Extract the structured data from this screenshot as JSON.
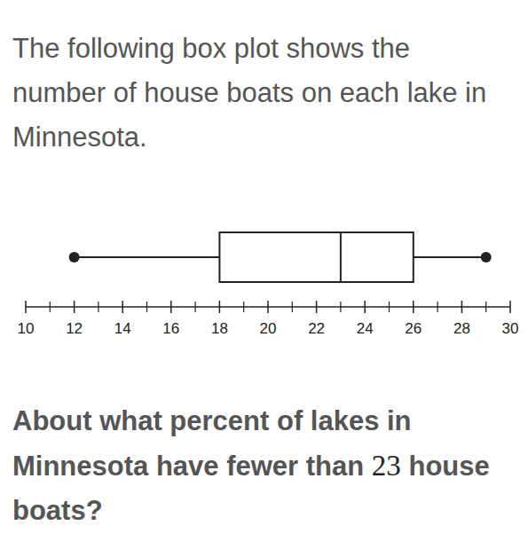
{
  "intro": "The following box plot shows the number of house boats on each lake in Minnesota.",
  "chart_data": {
    "type": "box",
    "min": 12,
    "q1": 18,
    "median": 23,
    "q3": 26,
    "max": 29,
    "xlim": [
      10,
      30
    ],
    "xticks": [
      10,
      12,
      14,
      16,
      18,
      20,
      22,
      24,
      26,
      28,
      30
    ],
    "minor_xticks": [
      11,
      13,
      15,
      17,
      19,
      21,
      23,
      25,
      27,
      29
    ],
    "grid": false
  },
  "question": "About what percent of lakes in Minnesota have fewer than 23 house boats?"
}
